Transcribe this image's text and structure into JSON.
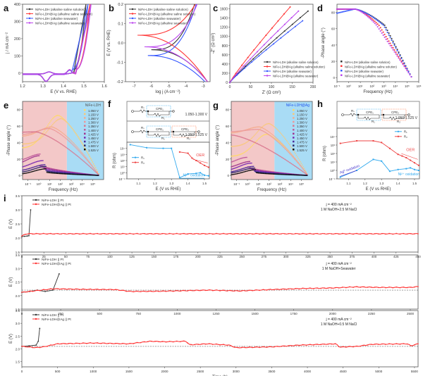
{
  "chart_data": [
    {
      "panel": "a",
      "type": "line",
      "xlabel": "E (V vs. RHE)",
      "ylabel": "j / mA cm⁻²",
      "xlim": [
        1.2,
        1.6
      ],
      "ylim": [
        -50,
        400
      ],
      "xticks": [
        "1.2",
        "1.3",
        "1.4",
        "1.5",
        "1.6"
      ],
      "yticks": [
        "0",
        "100",
        "200",
        "300",
        "400"
      ],
      "legend": "top-left",
      "series": [
        {
          "name": "NiFe-LDH (alkaline saline solution)",
          "color": "#333333",
          "onset": 1.45,
          "x400": 1.51
        },
        {
          "name": "NiFe-LDH@Ag (alkaline saline solution)",
          "color": "#ff3333",
          "onset": 1.46,
          "x400": 1.53
        },
        {
          "name": "NiFe-LDH (alkaline seawater)",
          "color": "#3355ff",
          "onset": 1.44,
          "x400": 1.52
        },
        {
          "name": "NiFe-LDH@Ag (alkaline seawater)",
          "color": "#bb44ee",
          "onset": 1.46,
          "x400": 1.535
        }
      ]
    },
    {
      "panel": "b",
      "type": "line",
      "xlabel": "log j (A cm⁻²)",
      "ylabel": "E (V vs. RHE)",
      "xlim": [
        -7.5,
        -2.6
      ],
      "ylim": [
        -0.2,
        0.2
      ],
      "xticks": [
        "-7",
        "-6",
        "-5",
        "-4",
        "-3"
      ],
      "yticks": [
        "-0.2",
        "-0.1",
        "0.0",
        "0.1",
        "0.2"
      ],
      "legend": "top-left",
      "series": [
        {
          "name": "NiFe-LDH (alkaline saline solution)",
          "color": "#333333",
          "ecorr": -0.035,
          "logjmin": -6.0
        },
        {
          "name": "NiFe-LDH@Ag (alkaline saline solution)",
          "color": "#ff3333",
          "ecorr": 0.04,
          "logjmin": -6.8
        },
        {
          "name": "NiFe-LDH (alkaline seawater)",
          "color": "#3355ff",
          "ecorr": -0.065,
          "logjmin": -6.2
        },
        {
          "name": "NiFe-LDH@Ag (alkaline seawater)",
          "color": "#bb44ee",
          "ecorr": -0.02,
          "logjmin": -6.4
        }
      ]
    },
    {
      "panel": "c",
      "type": "line",
      "xlabel": "Z' (Ω cm²)",
      "ylabel": "-Z'' (Ω cm²)",
      "xlim": [
        0,
        200
      ],
      "ylim": [
        0,
        1700
      ],
      "xticks": [
        "0",
        "50",
        "100",
        "150",
        "200"
      ],
      "yticks": [
        "0",
        "200",
        "400",
        "600",
        "800",
        "1000",
        "1200",
        "1400",
        "1600"
      ],
      "legend": "bottom-right",
      "series": [
        {
          "name": "NiFe-LDH (alkaline saline solution)",
          "color": "#333333",
          "end": [
            188,
            1550
          ]
        },
        {
          "name": "NiFe-LDH@Ag (alkaline saline solution)",
          "color": "#ff3333",
          "end": [
            145,
            1640
          ]
        },
        {
          "name": "NiFe-LDH (alkaline seawater)",
          "color": "#3355ff",
          "end": [
            175,
            1340
          ]
        },
        {
          "name": "NiFe-LDH@Ag (alkaline seawater)",
          "color": "#bb44ee",
          "end": [
            165,
            1550
          ]
        }
      ]
    },
    {
      "panel": "d",
      "type": "scatter",
      "xlabel": "Frequency (Hz)",
      "ylabel": "-Phase angle (°)",
      "xscale": "log",
      "xlim": [
        -1,
        6
      ],
      "ylim": [
        -5,
        90
      ],
      "xticks": [
        "10⁻¹",
        "10⁰",
        "10¹",
        "10²",
        "10³",
        "10⁴",
        "10⁵",
        "10⁶"
      ],
      "yticks": [
        "0",
        "20",
        "40",
        "60",
        "80"
      ],
      "legend": "bottom-left",
      "series": [
        {
          "name": "NiFe-LDH (alkaline saline solution)",
          "color": "#333333",
          "knee": 3.1,
          "start": 84
        },
        {
          "name": "NiFe-LDH@Ag (alkaline saline solution)",
          "color": "#ff3333",
          "knee": 2.6,
          "start": 84
        },
        {
          "name": "NiFe-LDH (alkaline seawater)",
          "color": "#3355ff",
          "knee": 3.0,
          "start": 79
        },
        {
          "name": "NiFe-LDH@Ag (alkaline seawater)",
          "color": "#bb44ee",
          "knee": 2.4,
          "start": 84
        }
      ]
    },
    {
      "panel": "e",
      "type": "scatter",
      "title": "NiFe-LDH",
      "xlabel": "Frequency (Hz)",
      "ylabel": "-Phase angle (°)",
      "xscale": "log",
      "xlim": [
        -1.5,
        6
      ],
      "ylim": [
        -5,
        90
      ],
      "xticks": [
        "10⁻¹",
        "10⁰",
        "10¹",
        "10²",
        "10³",
        "10⁴",
        "10⁵"
      ],
      "yticks": [
        "0",
        "20",
        "40",
        "60",
        "80"
      ],
      "legend": "top-right",
      "regions": [
        {
          "from": -1.5,
          "to": 2.6,
          "color": "#f3c8c8"
        },
        {
          "from": 2.6,
          "to": 6,
          "color": "#a9dcf5"
        }
      ],
      "series": [
        {
          "name": "1.050 V",
          "color": "#ffd966",
          "peak": 73,
          "peakAt": 1.8,
          "low": 33
        },
        {
          "name": "1.150 V",
          "color": "#f9c97a",
          "peak": 69,
          "peakAt": 2.1,
          "low": 38
        },
        {
          "name": "1.250 V",
          "color": "#f4ad8f",
          "peak": 59,
          "peakAt": 1.2,
          "low": 47
        },
        {
          "name": "1.300 V",
          "color": "#ec9a9a",
          "peak": 57,
          "peakAt": 1.0,
          "low": 49
        },
        {
          "name": "1.350 V",
          "color": "#d9768e",
          "peak": 53,
          "peakAt": -0.3,
          "low": 52
        },
        {
          "name": "1.400 V",
          "color": "#c05a9a",
          "peak": 26,
          "peakAt": 0.2,
          "low": 16
        },
        {
          "name": "1.425 V",
          "color": "#a0358f",
          "peak": 24,
          "peakAt": 0.1,
          "low": 12
        },
        {
          "name": "1.450 V",
          "color": "#7a2ab0",
          "peak": 18,
          "peakAt": 0.4,
          "low": 8
        },
        {
          "name": "1.475 V",
          "color": "#4b2a9a",
          "peak": 13,
          "peakAt": 0.6,
          "low": 5
        },
        {
          "name": "1.500 V",
          "color": "#2a2a6a",
          "peak": 11,
          "peakAt": 0.7,
          "low": 3
        },
        {
          "name": "1.525 V",
          "color": "#111111",
          "peak": 8,
          "peakAt": 0.7,
          "low": 1
        }
      ]
    },
    {
      "panel": "f",
      "type": "line",
      "xlabel": "E (V vs RHE)",
      "ylabel": "R (ohm)",
      "yscale": "log",
      "xlim": [
        1.03,
        1.53
      ],
      "ylim": [
        -1,
        5
      ],
      "xticks": [
        "1.1",
        "1.2",
        "1.3",
        "1.4",
        "1.5"
      ],
      "yticks": [
        "10⁻¹",
        "10⁰",
        "10¹",
        "10²",
        "10³",
        "10⁴"
      ],
      "circuits": [
        {
          "range": "1.050-1.300 V",
          "elements": [
            "Rₛ",
            "CPE₁",
            "R₁"
          ]
        },
        {
          "range": "1.350-1.525 V",
          "elements": [
            "Rₛ",
            "CPE₁",
            "R₁",
            "CPE₂",
            "R₂"
          ]
        }
      ],
      "annotations": [
        "OER",
        "Ni²⁺ oxidation"
      ],
      "series": [
        {
          "name": "R₁",
          "color": "#33aaee",
          "x": [
            1.05,
            1.15,
            1.25,
            1.3,
            1.35,
            1.4,
            1.45,
            1.475,
            1.5,
            1.525
          ],
          "y": [
            4.6,
            4.1,
            4.0,
            4.0,
            -0.8,
            -0.2,
            -0.1,
            0.0,
            -0.4,
            -0.5
          ]
        },
        {
          "name": "R₂",
          "color": "#ee4444",
          "x": [
            1.35,
            1.4,
            1.425,
            1.45,
            1.475,
            1.5,
            1.525
          ],
          "y": [
            3.4,
            3.2,
            2.4,
            2.0,
            1.6,
            1.2,
            0.9
          ]
        }
      ]
    },
    {
      "panel": "g",
      "type": "scatter",
      "title": "NiFe-LDH@Ag",
      "xlabel": "Frequency (Hz)",
      "ylabel": "-Phase angle (°)",
      "xscale": "log",
      "xlim": [
        -1.5,
        6
      ],
      "ylim": [
        -5,
        90
      ],
      "xticks": [
        "10⁻¹",
        "10⁰",
        "10¹",
        "10²",
        "10³",
        "10⁴",
        "10⁵"
      ],
      "yticks": [
        "0",
        "20",
        "40",
        "60",
        "80"
      ],
      "legend": "top-right",
      "regions": [
        {
          "from": -1.5,
          "to": 2.5,
          "color": "#f3c8c8"
        },
        {
          "from": 2.5,
          "to": 6,
          "color": "#a9dcf5"
        }
      ],
      "series": [
        {
          "name": "1.050 V",
          "color": "#ffd966",
          "peak": 50,
          "peakAt": 1.8,
          "low": 23
        },
        {
          "name": "1.150 V",
          "color": "#f9c97a",
          "peak": 63,
          "peakAt": 2.0,
          "low": 35
        },
        {
          "name": "1.250 V",
          "color": "#f4ad8f",
          "peak": 59,
          "peakAt": 1.1,
          "low": 51
        },
        {
          "name": "1.300 V",
          "color": "#ec9a9a",
          "peak": 56,
          "peakAt": 1.0,
          "low": 53
        },
        {
          "name": "1.350 V",
          "color": "#d9768e",
          "peak": 49,
          "peakAt": -1.4,
          "low": 49
        },
        {
          "name": "1.400 V",
          "color": "#c05a9a",
          "peak": 22,
          "peakAt": 0.0,
          "low": 12
        },
        {
          "name": "1.425 V",
          "color": "#a0358f",
          "peak": 17,
          "peakAt": 0.3,
          "low": 8
        },
        {
          "name": "1.450 V",
          "color": "#7a2ab0",
          "peak": 15,
          "peakAt": 0.4,
          "low": 5
        },
        {
          "name": "1.475 V",
          "color": "#4b2a9a",
          "peak": 11,
          "peakAt": 0.6,
          "low": 3
        },
        {
          "name": "1.500 V",
          "color": "#2a2a6a",
          "peak": 9,
          "peakAt": 0.7,
          "low": 2
        },
        {
          "name": "1.525 V",
          "color": "#111111",
          "peak": 7,
          "peakAt": 0.8,
          "low": 0
        }
      ]
    },
    {
      "panel": "h",
      "type": "line",
      "xlabel": "E (V vs RHE)",
      "ylabel": "R (ohm)",
      "yscale": "log",
      "xlim": [
        1.03,
        1.53
      ],
      "ylim": [
        -1,
        5
      ],
      "xticks": [
        "1.1",
        "1.2",
        "1.3",
        "1.4",
        "1.5"
      ],
      "yticks": [
        "10⁻¹",
        "10⁰",
        "10¹",
        "10²",
        "10³",
        "10⁴"
      ],
      "circuits": [
        {
          "range": "1.050-1.525 V",
          "elements": [
            "Rₛ",
            "CPE₁",
            "R₁",
            "CPE₂",
            "R₂"
          ]
        }
      ],
      "annotations": [
        "OER",
        "Ag⁰ oxidation",
        "Ni²⁺ oxidation"
      ],
      "series": [
        {
          "name": "R₁",
          "color": "#33aaee",
          "x": [
            1.05,
            1.15,
            1.25,
            1.3,
            1.35,
            1.4,
            1.45,
            1.475,
            1.5,
            1.525
          ],
          "y": [
            -0.8,
            0.0,
            1.3,
            1.1,
            -0.1,
            0.1,
            0.2,
            0.3,
            0.1,
            0.0
          ]
        },
        {
          "name": "R₂",
          "color": "#ee4444",
          "x": [
            1.05,
            1.15,
            1.25,
            1.3,
            1.35,
            1.4,
            1.425,
            1.45,
            1.475,
            1.5,
            1.525
          ],
          "y": [
            3.2,
            3.5,
            3.5,
            3.3,
            2.6,
            1.9,
            1.7,
            1.5,
            1.2,
            0.9,
            0.6
          ]
        }
      ]
    },
    {
      "panel": "i1",
      "type": "line",
      "ylabel": "E (V)",
      "xlim": [
        0,
        450
      ],
      "ylim": [
        1.5,
        3.5
      ],
      "xticks": [
        "0",
        "25",
        "50",
        "75",
        "100",
        "125",
        "150",
        "175",
        "200",
        "225",
        "250",
        "275",
        "300",
        "325",
        "350",
        "375",
        "400",
        "425",
        "450"
      ],
      "yticks": [
        "1.5",
        "2.0",
        "2.5",
        "3.0",
        "3.5"
      ],
      "annotation": [
        "j = 400 mA cm⁻²",
        "1 M NaOH+2.5 M NaCl"
      ],
      "series": [
        {
          "name": "NiFe-LDH || Pt",
          "color": "#333333",
          "x": [
            0,
            3,
            6,
            8,
            10
          ],
          "y": [
            2.05,
            2.06,
            2.07,
            2.08,
            3.0
          ]
        },
        {
          "name": "NiFe-LDH@Ag || Pt",
          "color": "#ff3333",
          "start": 2.07,
          "level": 2.15,
          "end": 450
        }
      ]
    },
    {
      "panel": "i2",
      "type": "line",
      "ylabel": "E (V)",
      "xlim": [
        0,
        2550
      ],
      "ylim": [
        1.5,
        3.5
      ],
      "xticks": [
        "0",
        "250",
        "500",
        "750",
        "1000",
        "1250",
        "1500",
        "1750",
        "2000",
        "2250",
        "2500"
      ],
      "yticks": [
        "1.5",
        "2.0",
        "2.5",
        "3.0",
        "3.5"
      ],
      "reference": 2.2,
      "annotation": [
        "j = 400 mA cm⁻²",
        "1 M NaOH+Seawater"
      ],
      "series": [
        {
          "name": "NiFe-LDH || Pt",
          "color": "#333333",
          "x": [
            0,
            50,
            100,
            150,
            200,
            240
          ],
          "y": [
            2.12,
            2.15,
            2.2,
            2.15,
            2.2,
            2.8
          ]
        },
        {
          "name": "NiFe-LDH@Ag || Pt",
          "color": "#ff3333",
          "x": [
            0,
            200,
            400,
            600,
            700,
            900,
            1200,
            1400,
            1600,
            1800,
            2000,
            2150,
            2300,
            2500,
            2550
          ],
          "y": [
            2.12,
            2.25,
            2.23,
            2.22,
            2.15,
            2.16,
            2.2,
            2.17,
            2.22,
            2.26,
            2.28,
            2.32,
            2.3,
            2.3,
            2.33
          ]
        }
      ]
    },
    {
      "panel": "i3",
      "type": "line",
      "xlabel": "Time (h)",
      "ylabel": "E (V)",
      "xlim": [
        0,
        5550
      ],
      "ylim": [
        1.3,
        3.5
      ],
      "xticks": [
        "0",
        "500",
        "1000",
        "1500",
        "2000",
        "2500",
        "3000",
        "3500",
        "4000",
        "4500",
        "5000",
        "5500"
      ],
      "yticks": [
        "1.5",
        "2.0",
        "2.5",
        "3.0",
        "3.5"
      ],
      "reference": 2.1,
      "annotation": [
        "j = 400 mA cm⁻²",
        "1 M NaOH+0.5 M NaCl"
      ],
      "series": [
        {
          "name": "NiFe-LDH || Pt",
          "color": "#333333",
          "x": [
            0,
            100,
            200,
            230,
            250
          ],
          "y": [
            2.1,
            2.12,
            2.15,
            2.3,
            2.8
          ]
        },
        {
          "name": "NiFe-LDH@Ag || Pt",
          "color": "#ff3333",
          "x": [
            0,
            200,
            300,
            500,
            1000,
            1500,
            1800,
            2000,
            2300,
            2350,
            2600,
            2900,
            3000,
            3500,
            3900,
            4400,
            4450,
            4700,
            4900,
            5400,
            5450,
            5550
          ],
          "y": [
            2.1,
            2.05,
            2.08,
            2.2,
            2.23,
            2.2,
            2.3,
            2.28,
            2.3,
            2.16,
            2.2,
            2.15,
            2.05,
            2.08,
            2.15,
            2.2,
            2.07,
            2.1,
            2.18,
            2.2,
            2.12,
            2.2
          ]
        }
      ]
    }
  ],
  "panel_labels": {
    "a": "a",
    "b": "b",
    "c": "c",
    "d": "d",
    "e": "e",
    "f": "f",
    "g": "g",
    "h": "h",
    "i": "i"
  }
}
